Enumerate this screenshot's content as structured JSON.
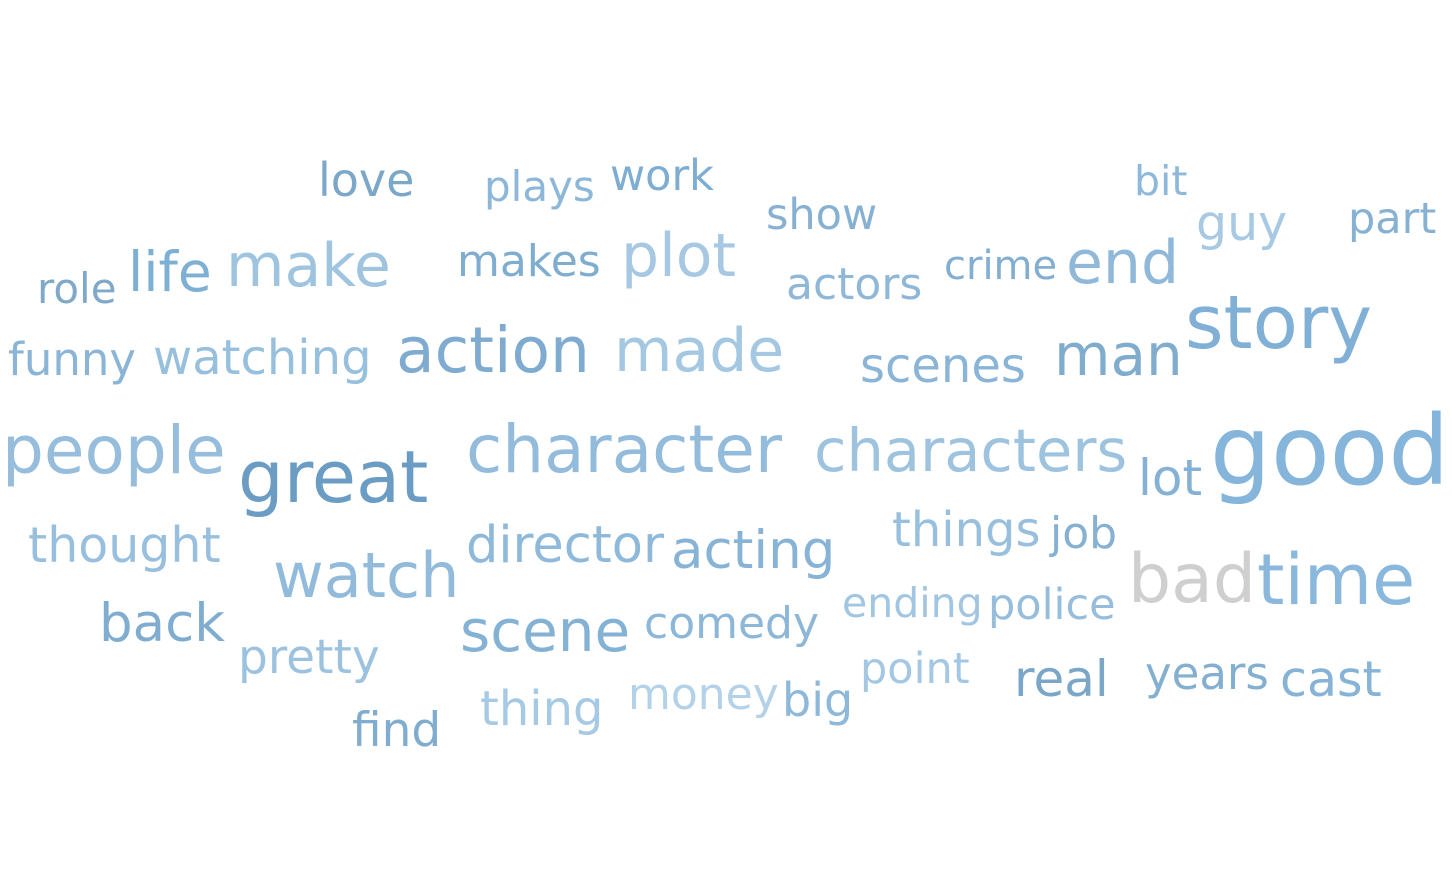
{
  "cloud": {
    "words": {
      "love": {
        "text": "love",
        "color": "#7ba7c9"
      },
      "plays": {
        "text": "plays",
        "color": "#8db7d8"
      },
      "work": {
        "text": "work",
        "color": "#7eadd3"
      },
      "bit": {
        "text": "bit",
        "color": "#8fb9da"
      },
      "show": {
        "text": "show",
        "color": "#86b1d2"
      },
      "guy": {
        "text": "guy",
        "color": "#a7c9e3"
      },
      "part": {
        "text": "part",
        "color": "#86b1d3"
      },
      "role": {
        "text": "role",
        "color": "#80a9c8"
      },
      "life": {
        "text": "life",
        "color": "#7eafd5"
      },
      "make": {
        "text": "make",
        "color": "#9ec4e0"
      },
      "makes": {
        "text": "makes",
        "color": "#7fadd0"
      },
      "plot": {
        "text": "plot",
        "color": "#a6c8e2"
      },
      "actors": {
        "text": "actors",
        "color": "#8fb8d8"
      },
      "crime": {
        "text": "crime",
        "color": "#81aed1"
      },
      "end": {
        "text": "end",
        "color": "#8fb8d9"
      },
      "story": {
        "text": "story",
        "color": "#80b0d6"
      },
      "funny": {
        "text": "funny",
        "color": "#8ab5d7"
      },
      "watching": {
        "text": "watching",
        "color": "#97bfde"
      },
      "action": {
        "text": "action",
        "color": "#7eabcf"
      },
      "made": {
        "text": "made",
        "color": "#a4c7e2"
      },
      "scenes": {
        "text": "scenes",
        "color": "#8ab5d7"
      },
      "man": {
        "text": "man",
        "color": "#80acce"
      },
      "people": {
        "text": "people",
        "color": "#96bddb"
      },
      "great": {
        "text": "great",
        "color": "#6a9cc4"
      },
      "character": {
        "text": "character",
        "color": "#93bbdb"
      },
      "characters": {
        "text": "characters",
        "color": "#9ec3df"
      },
      "lot": {
        "text": "lot",
        "color": "#85b2d4"
      },
      "good": {
        "text": "good",
        "color": "#86b5db"
      },
      "thought": {
        "text": "thought",
        "color": "#98bfdd"
      },
      "things": {
        "text": "things",
        "color": "#98bfdd"
      },
      "job": {
        "text": "job",
        "color": "#86b1d2"
      },
      "director": {
        "text": "director",
        "color": "#8fb9da"
      },
      "acting": {
        "text": "acting",
        "color": "#87b3d6"
      },
      "watch": {
        "text": "watch",
        "color": "#92bbdb"
      },
      "bad": {
        "text": "bad",
        "color": "#cfcfcf"
      },
      "time": {
        "text": "time",
        "color": "#8ab7dc"
      },
      "ending": {
        "text": "ending",
        "color": "#a2c6e2"
      },
      "police": {
        "text": "police",
        "color": "#96bddc"
      },
      "back": {
        "text": "back",
        "color": "#80adcf"
      },
      "scene": {
        "text": "scene",
        "color": "#84b2d5"
      },
      "comedy": {
        "text": "comedy",
        "color": "#8db7d8"
      },
      "pretty": {
        "text": "pretty",
        "color": "#9cc2df"
      },
      "point": {
        "text": "point",
        "color": "#a4c7e3"
      },
      "real": {
        "text": "real",
        "color": "#7aa6c8"
      },
      "years": {
        "text": "years",
        "color": "#83afd0"
      },
      "cast": {
        "text": "cast",
        "color": "#86b3d6"
      },
      "money": {
        "text": "money",
        "color": "#b3d1e8"
      },
      "big": {
        "text": "big",
        "color": "#8db8da"
      },
      "thing": {
        "text": "thing",
        "color": "#a6c9e4"
      },
      "find": {
        "text": "find",
        "color": "#80adcf"
      }
    }
  }
}
